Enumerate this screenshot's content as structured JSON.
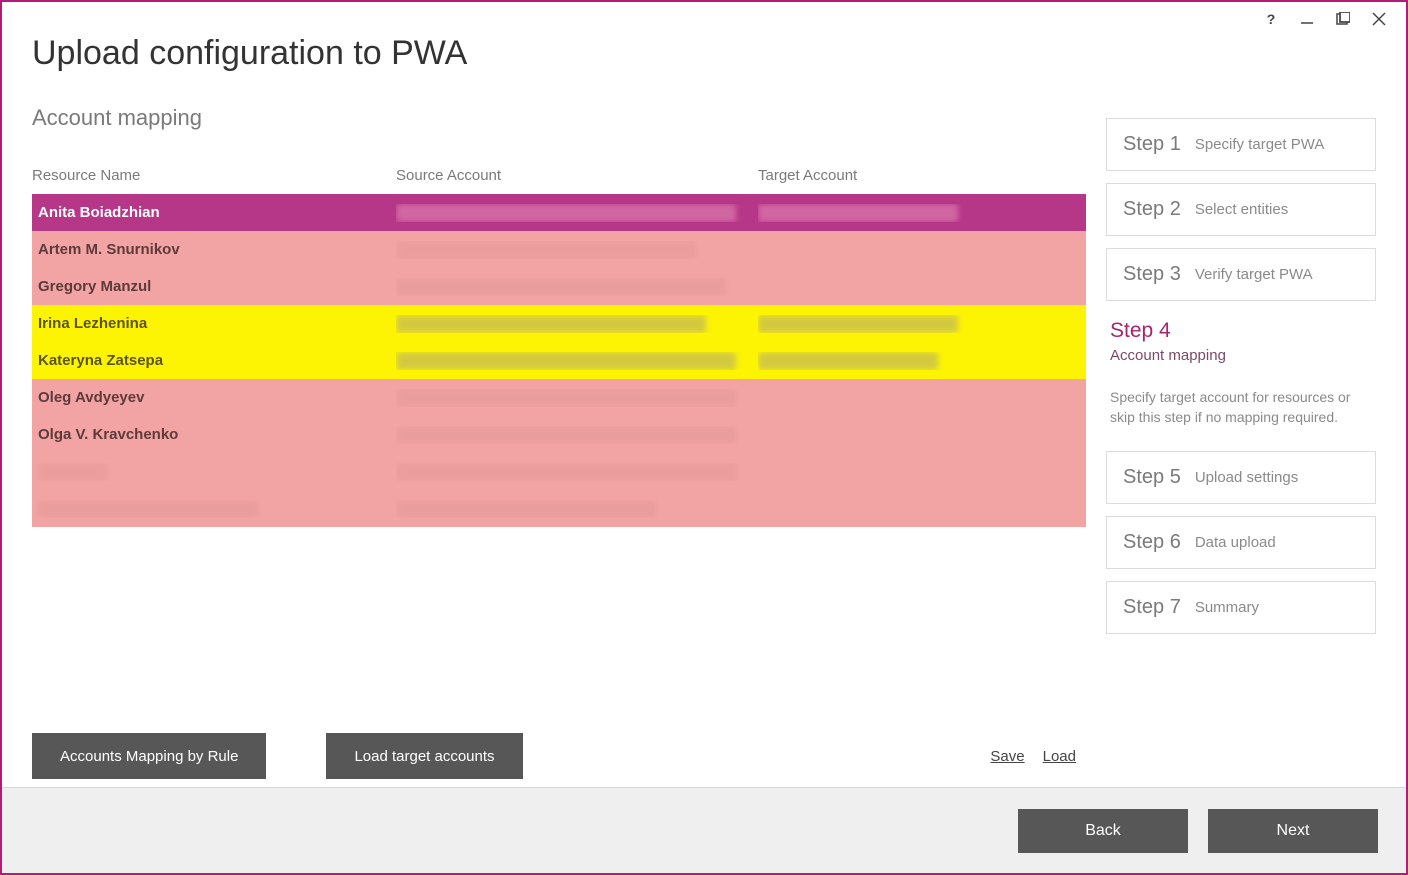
{
  "colors": {
    "accent": "#b11d74",
    "row_selected_bg": "#b63687",
    "row_selected_fg": "#ffffff",
    "row_warn_bg": "#f2a4a4",
    "row_highlight_bg": "#fdf404",
    "footer_bg": "#efefef",
    "dark_btn_bg": "#575757"
  },
  "header": {
    "title": "Upload configuration to PWA",
    "subtitle": "Account mapping"
  },
  "table": {
    "columns": {
      "name": "Resource Name",
      "source": "Source Account",
      "target": "Target Account"
    },
    "rows": [
      {
        "name": "Anita Boiadzhian",
        "source_blur_w": 340,
        "target_blur_w": 200,
        "state": "selected"
      },
      {
        "name": "Artem M. Snurnikov",
        "source_blur_w": 300,
        "target_blur_w": 0,
        "state": "warn"
      },
      {
        "name": "Gregory Manzul",
        "source_blur_w": 330,
        "target_blur_w": 0,
        "state": "warn"
      },
      {
        "name": "Irina Lezhenina",
        "source_blur_w": 310,
        "target_blur_w": 200,
        "state": "highlight"
      },
      {
        "name": "Kateryna Zatsepa",
        "source_blur_w": 340,
        "target_blur_w": 180,
        "state": "highlight"
      },
      {
        "name": "Oleg Avdyeyev",
        "source_blur_w": 340,
        "target_blur_w": 0,
        "state": "warn"
      },
      {
        "name": "Olga V. Kravchenko",
        "source_blur_w": 340,
        "target_blur_w": 0,
        "state": "warn"
      },
      {
        "name": "",
        "source_blur_w": 340,
        "target_blur_w": 0,
        "state": "warn",
        "name_blur_w": 70
      },
      {
        "name": "",
        "source_blur_w": 260,
        "target_blur_w": 0,
        "state": "warn",
        "name_blur_w": 220
      }
    ]
  },
  "buttons": {
    "mapping_by_rule": "Accounts Mapping by Rule",
    "load_target": "Load target accounts",
    "save": "Save",
    "load": "Load",
    "back": "Back",
    "next": "Next"
  },
  "steps": [
    {
      "num": "Step 1",
      "label": "Specify target PWA"
    },
    {
      "num": "Step 2",
      "label": "Select entities"
    },
    {
      "num": "Step 3",
      "label": "Verify target PWA"
    },
    {
      "num": "Step 4",
      "label": "Account mapping",
      "active": true,
      "desc": "Specify target account for resources or skip this step if no mapping required."
    },
    {
      "num": "Step 5",
      "label": "Upload settings"
    },
    {
      "num": "Step 6",
      "label": "Data upload"
    },
    {
      "num": "Step 7",
      "label": "Summary"
    }
  ]
}
